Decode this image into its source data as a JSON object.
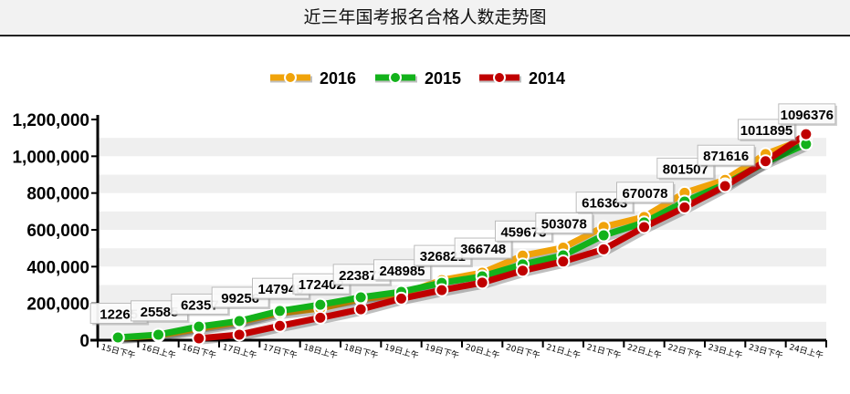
{
  "chart_data": {
    "type": "line",
    "title": "近三年国考报名合格人数走势图",
    "categories": [
      "15日下午",
      "16日上午",
      "16日下午",
      "17日上午",
      "17日下午",
      "18日上午",
      "18日下午",
      "19日上午",
      "19日下午",
      "20日上午",
      "20日下午",
      "21日上午",
      "21日下午",
      "22日上午",
      "22日下午",
      "23日上午",
      "23日下午",
      "24日上午"
    ],
    "ylim": [
      0,
      1200000
    ],
    "yticks": [
      "0",
      "200,000",
      "400,000",
      "600,000",
      "800,000",
      "1,000,000",
      "1,200,000"
    ],
    "grid": "alternating horizontal bands",
    "legend": "top-center",
    "series": [
      {
        "name": "2016",
        "color": "#f0a30a",
        "values": [
          12265,
          25585,
          62357,
          99256,
          147948,
          172402,
          223872,
          248985,
          326821,
          366748,
          459673,
          503078,
          616363,
          670078,
          801507,
          871616,
          1011895,
          1096376
        ]
      },
      {
        "name": "2015",
        "color": "#13b21b",
        "values": [
          15000,
          30000,
          74000,
          104000,
          159000,
          193000,
          233000,
          263000,
          312000,
          347000,
          412000,
          461000,
          570000,
          640000,
          754000,
          848000,
          967000,
          1066000
        ]
      },
      {
        "name": "2014",
        "color": "#c00000",
        "values": [
          null,
          null,
          10000,
          30000,
          78000,
          122000,
          168000,
          226000,
          272000,
          313000,
          378000,
          428000,
          494000,
          615000,
          722000,
          838000,
          973000,
          1120000
        ]
      }
    ],
    "data_labels": [
      "12265",
      "25585",
      "62357",
      "99256",
      "147948",
      "172402",
      "223872",
      "248985",
      "326821",
      "366748",
      "459673",
      "503078",
      "616363",
      "670078",
      "801507",
      "871616",
      "1011895",
      "1096376"
    ]
  }
}
